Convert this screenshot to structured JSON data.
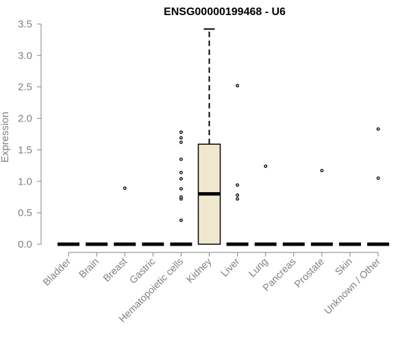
{
  "chart_data": {
    "type": "boxplot",
    "title": "ENSG00000199468 - U6",
    "xlabel": "",
    "ylabel": "Expression",
    "ylim": [
      0,
      3.5
    ],
    "yticks": [
      "0.0",
      "0.5",
      "1.0",
      "1.5",
      "2.0",
      "2.5",
      "3.0",
      "3.5"
    ],
    "grid": false,
    "box_fill": "#efe8cf",
    "median_color": "#000000",
    "categories": [
      "Bladder",
      "Brain",
      "Breast",
      "Gastric",
      "Hematopoietic cells",
      "Kidney",
      "Liver",
      "Lung",
      "Pancreas",
      "Prostate",
      "Skin",
      "Unknown / Other"
    ],
    "boxes": [
      {
        "q1": 0,
        "median": 0,
        "q3": 0,
        "whisker_low": 0,
        "whisker_high": 0,
        "outliers": []
      },
      {
        "q1": 0,
        "median": 0,
        "q3": 0,
        "whisker_low": 0,
        "whisker_high": 0,
        "outliers": []
      },
      {
        "q1": 0,
        "median": 0,
        "q3": 0,
        "whisker_low": 0,
        "whisker_high": 0,
        "outliers": [
          0.89
        ]
      },
      {
        "q1": 0,
        "median": 0,
        "q3": 0,
        "whisker_low": 0,
        "whisker_high": 0,
        "outliers": []
      },
      {
        "q1": 0,
        "median": 0,
        "q3": 0,
        "whisker_low": 0,
        "whisker_high": 0,
        "outliers": [
          0.38,
          0.72,
          0.75,
          0.88,
          1.04,
          1.14,
          1.35,
          1.62,
          1.69,
          1.78
        ]
      },
      {
        "q1": 0,
        "median": 0.8,
        "q3": 1.59,
        "whisker_low": 0,
        "whisker_high": 3.42,
        "outliers": []
      },
      {
        "q1": 0,
        "median": 0,
        "q3": 0,
        "whisker_low": 0,
        "whisker_high": 0,
        "outliers": [
          0.72,
          0.78,
          0.94,
          2.52
        ]
      },
      {
        "q1": 0,
        "median": 0,
        "q3": 0,
        "whisker_low": 0,
        "whisker_high": 0,
        "outliers": [
          1.24
        ]
      },
      {
        "q1": 0,
        "median": 0,
        "q3": 0,
        "whisker_low": 0,
        "whisker_high": 0,
        "outliers": []
      },
      {
        "q1": 0,
        "median": 0,
        "q3": 0,
        "whisker_low": 0,
        "whisker_high": 0,
        "outliers": [
          1.17
        ]
      },
      {
        "q1": 0,
        "median": 0,
        "q3": 0,
        "whisker_low": 0,
        "whisker_high": 0,
        "outliers": []
      },
      {
        "q1": 0,
        "median": 0,
        "q3": 0,
        "whisker_low": 0,
        "whisker_high": 0,
        "outliers": [
          1.05,
          1.83
        ]
      }
    ]
  }
}
